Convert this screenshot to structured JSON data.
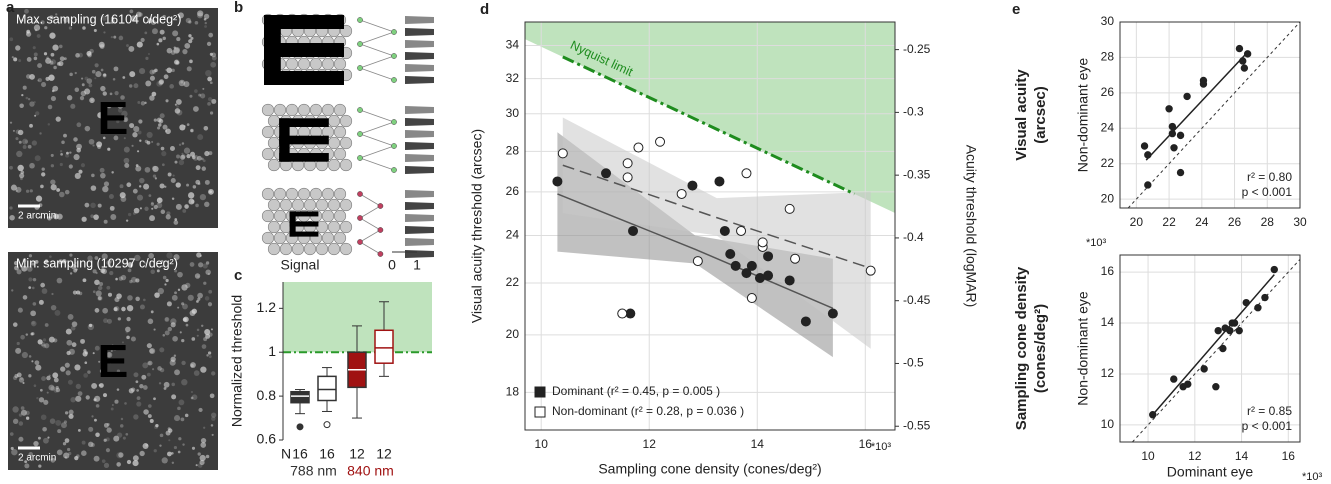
{
  "chart_data": [
    {
      "type": "image",
      "panel": "a",
      "title": "Max. sampling (16104 c/deg²)",
      "scale_bar": "2 arcmin",
      "letter": "E"
    },
    {
      "type": "image",
      "title": "Min. sampling (10297 c/deg²)",
      "scale_bar": "2 arcmin",
      "letter": "E"
    },
    {
      "type": "diagram",
      "panel": "b",
      "xlabel": "Signal",
      "xticks": [
        0,
        1
      ]
    },
    {
      "type": "box",
      "panel": "c",
      "ylabel": "Normalized threshold",
      "ylim": [
        0.6,
        1.32
      ],
      "yticks": [
        0.6,
        0.8,
        1,
        1.2
      ],
      "reference": 1,
      "region_color": "#bfe3bd",
      "reference_color": "#2a9a2a",
      "n_label": "N",
      "n": [
        16,
        16,
        12,
        12
      ],
      "groups": [
        {
          "name": "788 nm",
          "color": "#333333"
        },
        {
          "name": "840 nm",
          "color": "#a01212"
        }
      ],
      "boxes": [
        {
          "min": 0.72,
          "q1": 0.77,
          "median": 0.8,
          "q3": 0.82,
          "max": 0.83,
          "outliers": [
            0.66
          ],
          "fill": "#333333",
          "stroke": "#333333"
        },
        {
          "min": 0.73,
          "q1": 0.78,
          "median": 0.83,
          "q3": 0.89,
          "max": 0.93,
          "outliers": [
            0.67
          ],
          "fill": "#ffffff",
          "stroke": "#333333"
        },
        {
          "min": 0.7,
          "q1": 0.84,
          "median": 0.92,
          "q3": 1.0,
          "max": 1.12,
          "outliers": [],
          "fill": "#a01212",
          "stroke": "#333333"
        },
        {
          "min": 0.89,
          "q1": 0.95,
          "median": 1.02,
          "q3": 1.1,
          "max": 1.23,
          "outliers": [],
          "fill": "#ffffff",
          "stroke": "#a01212"
        }
      ]
    },
    {
      "type": "scatter",
      "panel": "d",
      "xlabel": "Sampling cone density (cones/deg²)",
      "ylabel": "Visual acuity threshold (arcsec)",
      "y2label": "Acuity threshold (logMAR)",
      "x_multiplier": "*10³",
      "grid": true,
      "xlim": [
        9.7,
        16.55
      ],
      "xticks": [
        10,
        12,
        14,
        16
      ],
      "log_y": true,
      "ylim": [
        16.8,
        35.5
      ],
      "yticks": [
        18,
        20,
        22,
        24,
        26,
        28,
        30,
        32,
        34
      ],
      "y2lim": [
        -0.553,
        -0.228
      ],
      "y2ticks": [
        -0.25,
        -0.3,
        -0.35,
        -0.4,
        -0.45,
        -0.5,
        -0.55
      ],
      "nyquist": {
        "label": "Nyquist limit",
        "x": [
          10.4,
          15.8
        ],
        "values": [
          33.3,
          25.9
        ],
        "color": "#1e8c1e",
        "region_color": "#bfe3bd"
      },
      "series": [
        {
          "name": "Dominant (r² = 0.45, p = 0.005 )",
          "marker": "filled",
          "color": "#222222",
          "band_color": "#8e8e8e",
          "x": [
            10.3,
            11.2,
            11.65,
            11.7,
            12.8,
            13.3,
            13.4,
            13.5,
            13.6,
            13.8,
            13.9,
            14.05,
            14.2,
            14.2,
            14.6,
            14.9,
            15.4
          ],
          "values": [
            26.5,
            26.9,
            20.8,
            24.2,
            26.3,
            26.5,
            24.2,
            23.2,
            22.7,
            22.4,
            22.7,
            22.2,
            22.3,
            23.1,
            22.1,
            20.5,
            20.8
          ],
          "fit": {
            "x": [
              10.3,
              12.85,
              15.4
            ],
            "values": [
              25.9,
              23.4,
              21.0
            ],
            "lower": [
              23.3,
              22.8,
              19.2
            ],
            "upper": [
              29.0,
              24.0,
              23.0
            ],
            "dashed": false
          }
        },
        {
          "name": "Non-dominant (r² = 0.28, p = 0.036 )",
          "marker": "open",
          "color": "#222222",
          "band_color": "#c9c9c9",
          "x": [
            10.4,
            11.5,
            11.6,
            11.6,
            11.8,
            12.2,
            12.6,
            12.9,
            13.7,
            13.8,
            13.9,
            14.1,
            14.1,
            14.6,
            14.7,
            16.1
          ],
          "values": [
            27.9,
            20.8,
            27.4,
            26.7,
            28.2,
            28.5,
            25.9,
            22.9,
            24.2,
            26.9,
            21.4,
            23.5,
            23.7,
            25.2,
            23.0,
            22.5
          ],
          "fit": {
            "x": [
              10.4,
              13.25,
              16.1
            ],
            "values": [
              27.3,
              24.8,
              22.6
            ],
            "lower": [
              25.0,
              24.0,
              19.5
            ],
            "upper": [
              29.8,
              25.7,
              26.0
            ],
            "dashed": true
          }
        }
      ]
    },
    {
      "type": "scatter",
      "panel": "e",
      "row_label": [
        "Visual acuity",
        "(arcsec)"
      ],
      "ylabel": "Non-dominant eye",
      "grid": true,
      "xlim": [
        19,
        30
      ],
      "xticks": [
        20,
        22,
        24,
        26,
        28,
        30
      ],
      "ylim": [
        19.5,
        30
      ],
      "yticks": [
        20,
        22,
        24,
        26,
        28,
        30
      ],
      "x": [
        20.5,
        20.7,
        20.7,
        22.0,
        22.2,
        22.2,
        22.3,
        22.7,
        22.7,
        23.1,
        24.1,
        24.1,
        26.3,
        26.5,
        26.6,
        26.8
      ],
      "values": [
        23.0,
        22.5,
        20.8,
        25.1,
        24.1,
        23.7,
        22.9,
        23.6,
        21.5,
        25.8,
        26.7,
        26.5,
        28.5,
        27.8,
        27.4,
        28.2
      ],
      "fit": {
        "x": [
          20.6,
          26.8
        ],
        "values": [
          22.2,
          28.3
        ]
      },
      "stats": [
        "r² = 0.80",
        "p < 0.001"
      ]
    },
    {
      "type": "scatter",
      "row_label": [
        "Sampling cone density",
        "(cones/deg²)"
      ],
      "ylabel": "Non-dominant eye",
      "xlabel": "Dominant eye",
      "x_multiplier": "*10³",
      "y_multiplier": "*10³",
      "grid": true,
      "xlim": [
        8.8,
        16.5
      ],
      "xticks": [
        10,
        12,
        14,
        16
      ],
      "ylim": [
        9.33,
        16.67
      ],
      "yticks": [
        10,
        12,
        14,
        16
      ],
      "x": [
        10.2,
        11.1,
        11.5,
        11.7,
        12.4,
        12.9,
        13.0,
        13.2,
        13.3,
        13.5,
        13.6,
        13.7,
        13.9,
        14.2,
        14.7,
        15.0,
        15.4
      ],
      "values": [
        10.4,
        11.8,
        11.5,
        11.6,
        12.2,
        11.5,
        13.7,
        13.0,
        13.8,
        13.7,
        14.0,
        14.0,
        13.7,
        14.8,
        14.6,
        15.0,
        16.1
      ],
      "fit": {
        "x": [
          10.2,
          15.4
        ],
        "values": [
          10.4,
          15.9
        ]
      },
      "stats": [
        "r² = 0.85",
        "p < 0.001"
      ]
    }
  ]
}
